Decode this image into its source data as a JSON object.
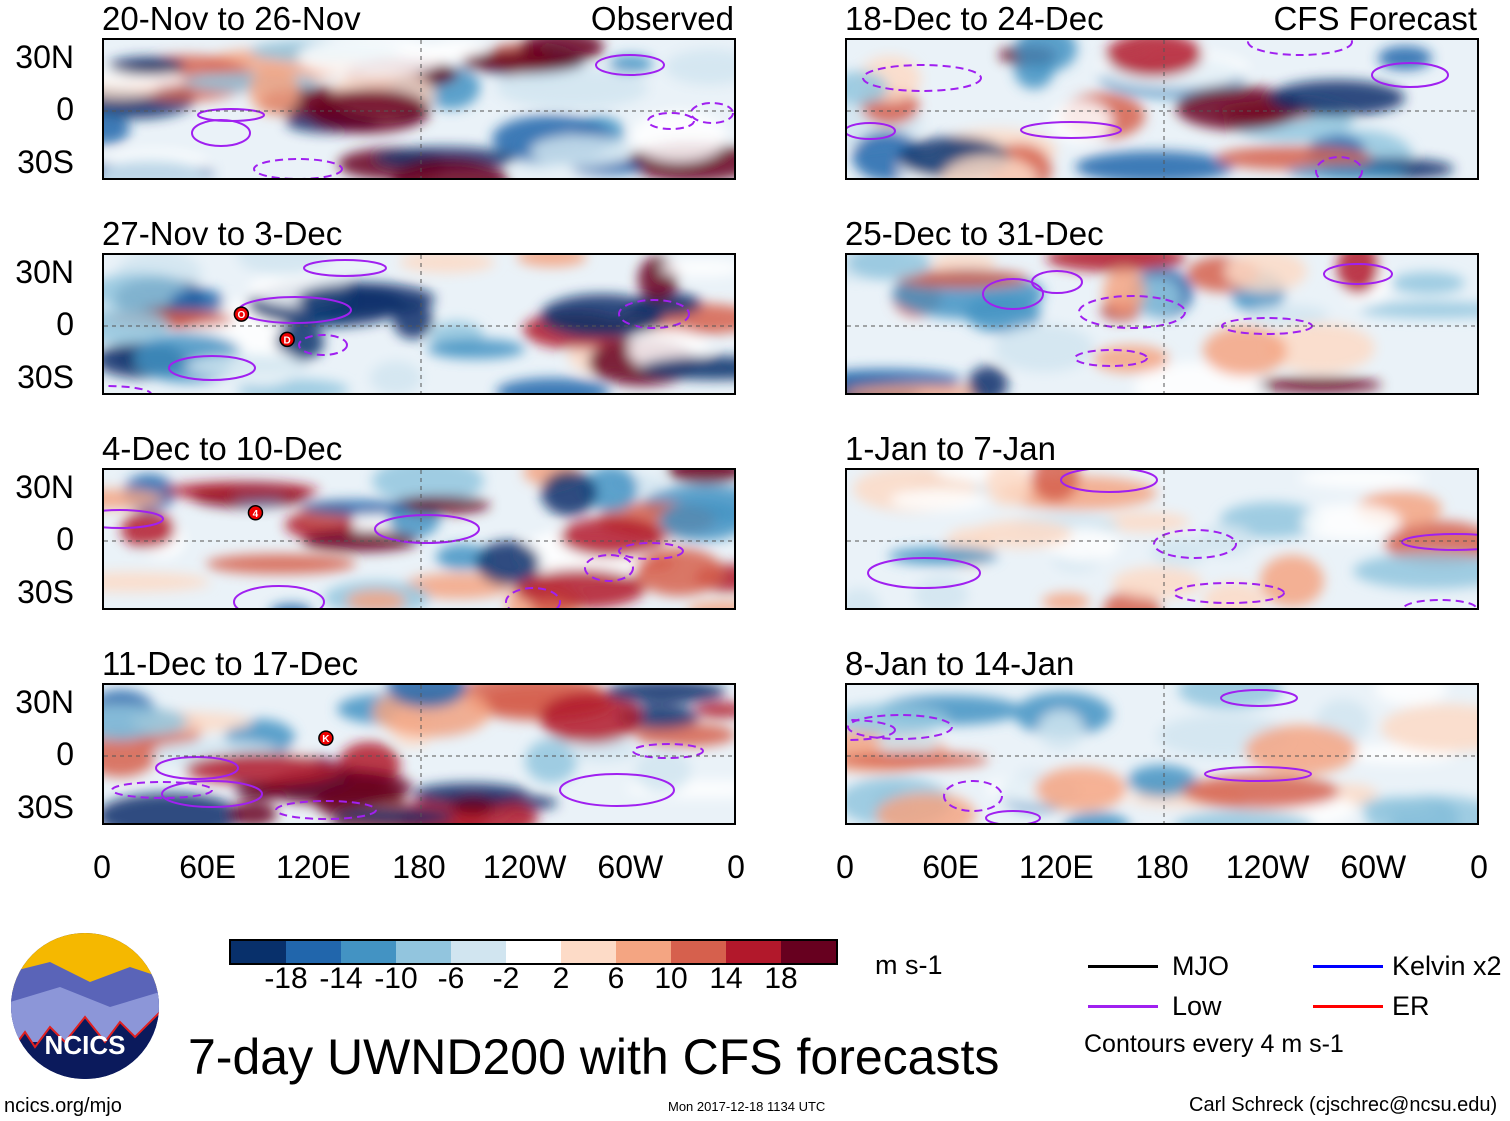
{
  "title": "7-day UWND200 with CFS forecasts",
  "logo_text": "NCICS",
  "footer": {
    "left": "ncics.org/mjo",
    "center": "Mon 2017-12-18 1134 UTC",
    "right": "Carl Schreck (cjschrec@ncsu.edu)"
  },
  "chart_data": {
    "type": "heatmap",
    "variable": "200-hPa zonal wind anomaly (7-day means)",
    "units": "m s-1",
    "column_headers": {
      "left": "Observed",
      "right": "CFS Forecast"
    },
    "lat_ticks": [
      "30N",
      "0",
      "30S"
    ],
    "lon_ticks": [
      "0",
      "60E",
      "120E",
      "180",
      "120W",
      "60W",
      "0"
    ],
    "panels": [
      {
        "period": "20-Nov to 26-Nov",
        "column": "left",
        "storms": []
      },
      {
        "period": "27-Nov to 3-Dec",
        "column": "left",
        "storms": [
          {
            "label": "O",
            "lon": 78,
            "lat": 8
          },
          {
            "label": "D",
            "lon": 104,
            "lat": -9
          }
        ]
      },
      {
        "period": "4-Dec to 10-Dec",
        "column": "left",
        "storms": [
          {
            "label": "4",
            "lon": 86,
            "lat": 19
          }
        ]
      },
      {
        "period": "11-Dec to 17-Dec",
        "column": "left",
        "storms": [
          {
            "label": "K",
            "lon": 126,
            "lat": 12
          }
        ]
      },
      {
        "period": "18-Dec to 24-Dec",
        "column": "right",
        "storms": []
      },
      {
        "period": "25-Dec to 31-Dec",
        "column": "right",
        "storms": []
      },
      {
        "period": "1-Jan to 7-Jan",
        "column": "right",
        "storms": []
      },
      {
        "period": "8-Jan to 14-Jan",
        "column": "right",
        "storms": []
      }
    ],
    "colorbar": {
      "labels": [
        "-18",
        "-14",
        "-10",
        "-6",
        "-2",
        "2",
        "6",
        "10",
        "14",
        "18"
      ],
      "colors": [
        "#08306b",
        "#2166ac",
        "#4393c3",
        "#92c5de",
        "#d1e5f0",
        "#ffffff",
        "#fddbc7",
        "#f4a582",
        "#d6604d",
        "#b2182b",
        "#67001f"
      ]
    },
    "legend": {
      "items": [
        {
          "label": "MJO",
          "color": "#000000"
        },
        {
          "label": "Kelvin x2",
          "color": "#0000ff"
        },
        {
          "label": "Low",
          "color": "#a020f0"
        },
        {
          "label": "ER",
          "color": "#ff0000"
        }
      ],
      "note": "Contours every 4 m s-1"
    }
  }
}
